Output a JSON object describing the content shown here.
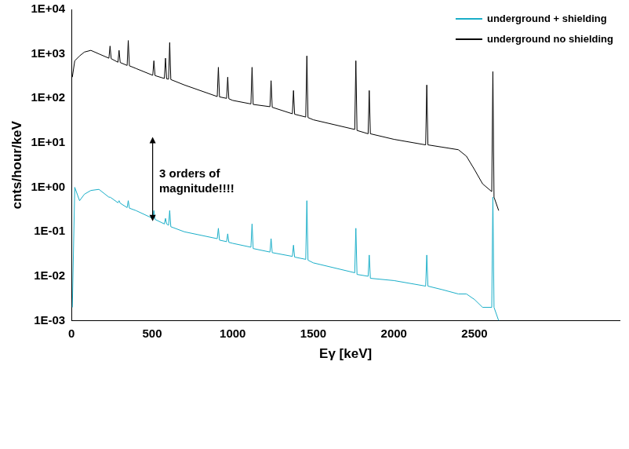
{
  "chart_data": {
    "type": "line",
    "xlabel": "Eγ [keV]",
    "ylabel": "cnts/hour/keV",
    "log": "y",
    "grid": false,
    "legend": "upper right",
    "xlim": [
      0,
      3400
    ],
    "xticks": [
      0,
      500,
      1000,
      1500,
      2000,
      2500
    ],
    "ylim": [
      0.001,
      10000
    ],
    "yticks": [
      {
        "value": 0.001,
        "label": "1E-03"
      },
      {
        "value": 0.01,
        "label": "1E-02"
      },
      {
        "value": 0.1,
        "label": "1E-01"
      },
      {
        "value": 1,
        "label": "1E+00"
      },
      {
        "value": 10,
        "label": "1E+01"
      },
      {
        "value": 100,
        "label": "1E+02"
      },
      {
        "value": 1000,
        "label": "1E+03"
      },
      {
        "value": 10000,
        "label": "1E+04"
      }
    ],
    "annotations": [
      {
        "text": "3 orders of magnitude!!!!"
      }
    ],
    "x": [
      5,
      20,
      50,
      80,
      120,
      170,
      232,
      239,
      246,
      288,
      295,
      302,
      345,
      352,
      359,
      400,
      504,
      511,
      518,
      576,
      583,
      590,
      602,
      609,
      616,
      700,
      904,
      911,
      918,
      962,
      969,
      976,
      1000,
      1113,
      1120,
      1127,
      1231,
      1238,
      1245,
      1370,
      1377,
      1384,
      1453,
      1460,
      1467,
      1500,
      1757,
      1764,
      1771,
      1840,
      1847,
      1854,
      2000,
      2197,
      2204,
      2211,
      2300,
      2400,
      2450,
      2500,
      2550,
      2607,
      2614,
      2621,
      2650
    ],
    "series": [
      {
        "name": "underground + shielding",
        "color": "#1aaec8",
        "values": [
          0.002,
          1.0,
          0.5,
          0.7,
          0.85,
          0.9,
          0.6,
          0.6,
          0.58,
          0.45,
          0.5,
          0.44,
          0.35,
          0.5,
          0.34,
          0.3,
          0.2,
          0.3,
          0.19,
          0.15,
          0.2,
          0.15,
          0.14,
          0.3,
          0.13,
          0.1,
          0.07,
          0.12,
          0.065,
          0.06,
          0.09,
          0.058,
          0.055,
          0.045,
          0.15,
          0.042,
          0.035,
          0.07,
          0.034,
          0.028,
          0.05,
          0.027,
          0.024,
          0.5,
          0.023,
          0.02,
          0.012,
          0.12,
          0.011,
          0.01,
          0.03,
          0.009,
          0.008,
          0.006,
          0.03,
          0.006,
          0.005,
          0.004,
          0.004,
          0.003,
          0.002,
          0.002,
          0.6,
          0.002,
          0.001
        ]
      },
      {
        "name": "underground no shielding",
        "color": "#000000",
        "values": [
          300,
          700,
          900,
          1100,
          1200,
          1000,
          800,
          1500,
          780,
          650,
          1200,
          640,
          550,
          2000,
          540,
          470,
          330,
          700,
          325,
          280,
          800,
          275,
          270,
          1800,
          265,
          200,
          110,
          500,
          108,
          100,
          300,
          98,
          90,
          75,
          500,
          73,
          65,
          250,
          63,
          45,
          150,
          44,
          38,
          900,
          37,
          33,
          20,
          700,
          19,
          16,
          150,
          16,
          12,
          9,
          200,
          9,
          8,
          7,
          5,
          2.5,
          1.2,
          0.8,
          400,
          0.6,
          0.3
        ]
      }
    ]
  }
}
